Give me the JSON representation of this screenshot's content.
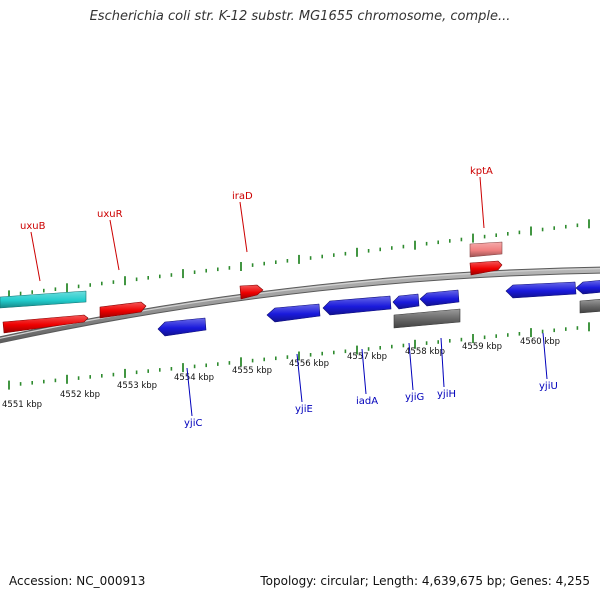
{
  "title": "Escherichia coli str. K-12 substr. MG1655 chromosome, comple...",
  "footer": {
    "accession": "Accession: NC_000913",
    "stats": "Topology: circular; Length: 4,639,675 bp; Genes: 4,255"
  },
  "colors": {
    "ruler_tick": "#2e8b2e",
    "backbone": "#8c8c8c",
    "forward_gene": "#ee0000",
    "reverse_gene": "#1a1adc",
    "rna_gene": "#22cccc",
    "pseudo_gene": "#666666",
    "faded_gene": "#f08080",
    "forward_label": "#cc0000",
    "reverse_label": "#0000bb"
  },
  "ruler": {
    "unit": "kbp",
    "major_ticks": [
      {
        "label": "4551 kbp"
      },
      {
        "label": "4552 kbp"
      },
      {
        "label": "4553 kbp"
      },
      {
        "label": "4554 kbp"
      },
      {
        "label": "4555 kbp"
      },
      {
        "label": "4556 kbp"
      },
      {
        "label": "4557 kbp"
      },
      {
        "label": "4558 kbp"
      },
      {
        "label": "4559 kbp"
      },
      {
        "label": "4560 kbp"
      }
    ]
  },
  "genes_forward": [
    {
      "name": "uxuB",
      "labeled": true,
      "style": "rna"
    },
    {
      "name": "",
      "labeled": false,
      "style": "forward"
    },
    {
      "name": "uxuR",
      "labeled": true,
      "style": "forward"
    },
    {
      "name": "iraD",
      "labeled": true,
      "style": "forward"
    },
    {
      "name": "kptA",
      "labeled": true,
      "style": "forward"
    },
    {
      "name": "",
      "labeled": false,
      "style": "faded"
    }
  ],
  "genes_reverse": [
    {
      "name": "yjiC",
      "labeled": true,
      "style": "reverse"
    },
    {
      "name": "yjiE",
      "labeled": true,
      "style": "reverse"
    },
    {
      "name": "iadA",
      "labeled": true,
      "style": "reverse"
    },
    {
      "name": "yjiG",
      "labeled": true,
      "style": "reverse"
    },
    {
      "name": "yjiH",
      "labeled": true,
      "style": "reverse"
    },
    {
      "name": "yjiU",
      "labeled": true,
      "style": "reverse"
    },
    {
      "name": "",
      "labeled": false,
      "style": "reverse"
    },
    {
      "name": "",
      "labeled": false,
      "style": "pseudo"
    },
    {
      "name": "",
      "labeled": false,
      "style": "pseudo"
    }
  ]
}
